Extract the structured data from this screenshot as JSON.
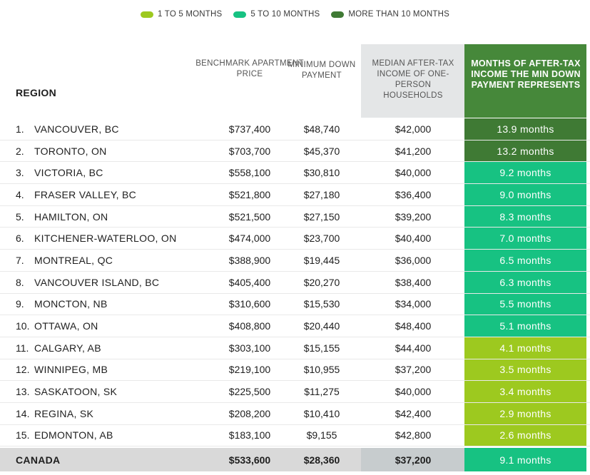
{
  "legend": [
    {
      "label": "1 TO 5 MONTHS",
      "color": "#9dc91f"
    },
    {
      "label": "5 TO 10 MONTHS",
      "color": "#17c282"
    },
    {
      "label": "MORE THAN 10 MONTHS",
      "color": "#3f7a34"
    }
  ],
  "headers": {
    "region": "REGION",
    "price": "BENCHMARK APARTMENT PRICE",
    "down": "MINIMUM DOWN PAYMENT",
    "income": "MEDIAN AFTER-TAX INCOME OF ONE-PERSON HOUSEHOLDS",
    "months": "MONTHS OF AFTER-TAX INCOME THE MIN DOWN PAYMENT REPRESENTS"
  },
  "chart_data": {
    "type": "table",
    "columns": [
      "REGION",
      "BENCHMARK APARTMENT PRICE",
      "MINIMUM DOWN PAYMENT",
      "MEDIAN AFTER-TAX INCOME OF ONE-PERSON HOUSEHOLDS",
      "MONTHS OF AFTER-TAX INCOME THE MIN DOWN PAYMENT REPRESENTS"
    ],
    "rows": [
      {
        "rank": "1.",
        "region": "VANCOUVER, BC",
        "price": "$737,400",
        "down": "$48,740",
        "income": "$42,000",
        "months": "13.9 months",
        "months_value": 13.9,
        "category": "MORE THAN 10 MONTHS"
      },
      {
        "rank": "2.",
        "region": "TORONTO, ON",
        "price": "$703,700",
        "down": "$45,370",
        "income": "$41,200",
        "months": "13.2 months",
        "months_value": 13.2,
        "category": "MORE THAN 10 MONTHS"
      },
      {
        "rank": "3.",
        "region": "VICTORIA, BC",
        "price": "$558,100",
        "down": "$30,810",
        "income": "$40,000",
        "months": "9.2 months",
        "months_value": 9.2,
        "category": "5 TO 10 MONTHS"
      },
      {
        "rank": "4.",
        "region": "FRASER VALLEY, BC",
        "price": "$521,800",
        "down": "$27,180",
        "income": "$36,400",
        "months": "9.0 months",
        "months_value": 9.0,
        "category": "5 TO 10 MONTHS"
      },
      {
        "rank": "5.",
        "region": "HAMILTON, ON",
        "price": "$521,500",
        "down": "$27,150",
        "income": "$39,200",
        "months": "8.3 months",
        "months_value": 8.3,
        "category": "5 TO 10 MONTHS"
      },
      {
        "rank": "6.",
        "region": "KITCHENER-WATERLOO, ON",
        "price": "$474,000",
        "down": "$23,700",
        "income": "$40,400",
        "months": "7.0 months",
        "months_value": 7.0,
        "category": "5 TO 10 MONTHS"
      },
      {
        "rank": "7.",
        "region": "MONTREAL, QC",
        "price": "$388,900",
        "down": "$19,445",
        "income": "$36,000",
        "months": "6.5 months",
        "months_value": 6.5,
        "category": "5 TO 10 MONTHS"
      },
      {
        "rank": "8.",
        "region": "VANCOUVER ISLAND, BC",
        "price": "$405,400",
        "down": "$20,270",
        "income": "$38,400",
        "months": "6.3 months",
        "months_value": 6.3,
        "category": "5 TO 10 MONTHS"
      },
      {
        "rank": "9.",
        "region": "MONCTON, NB",
        "price": "$310,600",
        "down": "$15,530",
        "income": "$34,000",
        "months": "5.5 months",
        "months_value": 5.5,
        "category": "5 TO 10 MONTHS"
      },
      {
        "rank": "10.",
        "region": "OTTAWA, ON",
        "price": "$408,800",
        "down": "$20,440",
        "income": "$48,400",
        "months": "5.1 months",
        "months_value": 5.1,
        "category": "5 TO 10 MONTHS"
      },
      {
        "rank": "11.",
        "region": "CALGARY, AB",
        "price": "$303,100",
        "down": "$15,155",
        "income": "$44,400",
        "months": "4.1 months",
        "months_value": 4.1,
        "category": "1 TO 5 MONTHS"
      },
      {
        "rank": "12.",
        "region": "WINNIPEG, MB",
        "price": "$219,100",
        "down": "$10,955",
        "income": "$37,200",
        "months": "3.5 months",
        "months_value": 3.5,
        "category": "1 TO 5 MONTHS"
      },
      {
        "rank": "13.",
        "region": "SASKATOON, SK",
        "price": "$225,500",
        "down": "$11,275",
        "income": "$40,000",
        "months": "3.4 months",
        "months_value": 3.4,
        "category": "1 TO 5 MONTHS"
      },
      {
        "rank": "14.",
        "region": "REGINA, SK",
        "price": "$208,200",
        "down": "$10,410",
        "income": "$42,400",
        "months": "2.9 months",
        "months_value": 2.9,
        "category": "1 TO 5 MONTHS"
      },
      {
        "rank": "15.",
        "region": "EDMONTON, AB",
        "price": "$183,100",
        "down": "$9,155",
        "income": "$42,800",
        "months": "2.6 months",
        "months_value": 2.6,
        "category": "1 TO 5 MONTHS"
      }
    ],
    "total": {
      "region": "CANADA",
      "price": "$533,600",
      "down": "$28,360",
      "income": "$37,200",
      "months": "9.1 months",
      "months_value": 9.1,
      "category": "5 TO 10 MONTHS"
    }
  }
}
